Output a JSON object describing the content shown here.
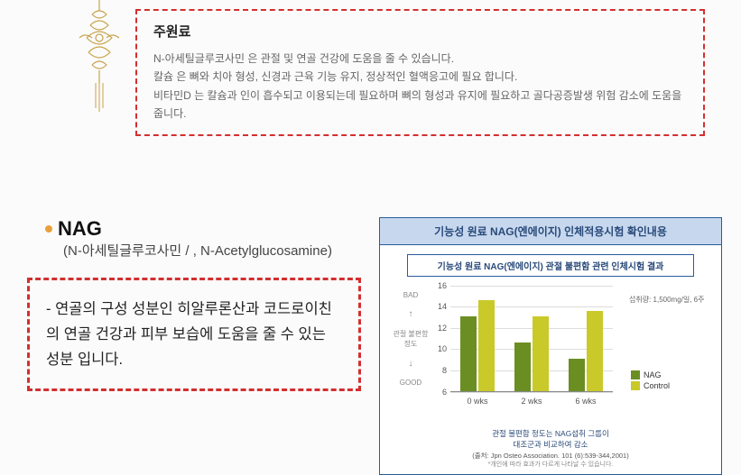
{
  "top": {
    "title": "주원료",
    "lines": [
      "N-아세틸글루코사민 은 관절 및 연골 건강에 도움을 줄 수 있습니다.",
      "칼슘 은 뼈와 치아 형성, 신경과 근육 기능 유지, 정상적인 혈액응고에 필요 합니다.",
      "비타민D 는 칼슘과 인이 흡수되고 이용되는데 필요하며 뼈의 형성과 유지에 필요하고 골다공증발생 위험 감소에 도움을 줍니다."
    ]
  },
  "nag": {
    "title": "NAG",
    "subtitle": "(N-아세틸글루코사민 / , N-Acetylglucosamine)",
    "desc": "- 연골의 구성 성분인 히알루론산과 코드로이친의 연골 건강과 피부 보습에 도움을 줄 수 있는 성분 입니다."
  },
  "chart": {
    "title": "기능성 원료 NAG(엔에이지) 인체적용시험 확인내용",
    "subtitle": "기능성 원료 NAG(엔에이지) 관절 불편함 관련 인체시험 결과",
    "dose": "섭취량: 1,500mg/일, 6주",
    "ymax": 16,
    "yticks": [
      6,
      8,
      10,
      12,
      14,
      16
    ],
    "ylabel_top": "BAD",
    "ylabel_mid": "관절 불편함\n정도",
    "ylabel_bot": "GOOD",
    "categories": [
      "0 wks",
      "2 wks",
      "6 wks"
    ],
    "series": {
      "NAG": [
        13.0,
        10.5,
        9.0
      ],
      "Control": [
        14.5,
        13.0,
        13.5
      ]
    },
    "colors": {
      "NAG": "#6b8e23",
      "Control": "#c9c92a"
    },
    "foot1": "관절 불편함 정도는 NAG섭취 그룹이",
    "foot2": "대조군과 비교하여 감소",
    "source": "(출처: Jpn Osteo Association. 101 (6):539-344,2001)",
    "note": "*개인에 따라 효과가 다르게 나타날 수 있습니다."
  }
}
